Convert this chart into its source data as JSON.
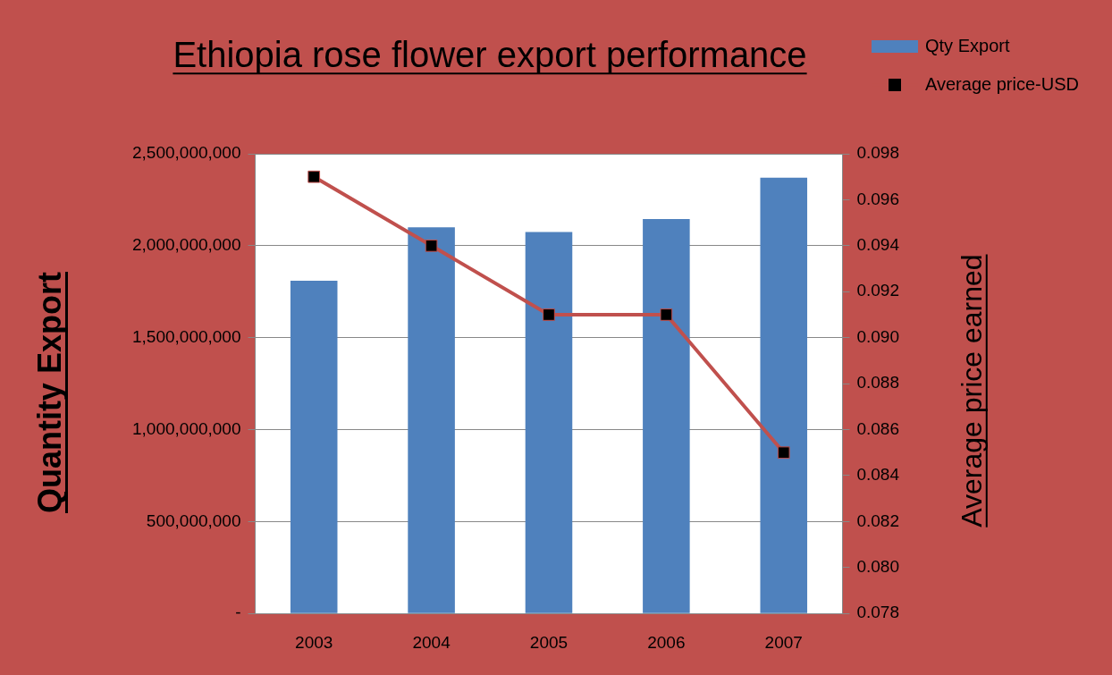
{
  "chart_data": {
    "type": "bar",
    "title": "Ethiopia rose flower export performance",
    "ylabel": "Quantity Export",
    "y2label": "Average price earned",
    "categories": [
      "2003",
      "2004",
      "2005",
      "2006",
      "2007"
    ],
    "series": [
      {
        "name": "Qty Export",
        "color": "#4f81bd",
        "values": [
          1810000000,
          2100000000,
          2075000000,
          2145000000,
          2370000000
        ]
      },
      {
        "name": "Average price-USD",
        "type": "line",
        "axis": "y2",
        "color": "#c0504d",
        "marker": "square",
        "values": [
          0.097,
          0.094,
          0.091,
          0.091,
          0.085
        ]
      }
    ],
    "ylim": [
      0,
      2500000000
    ],
    "yticks": [
      {
        "value": 0,
        "label": "-"
      },
      {
        "value": 500000000,
        "label": "500,000,000"
      },
      {
        "value": 1000000000,
        "label": "1,000,000,000"
      },
      {
        "value": 1500000000,
        "label": "1,500,000,000"
      },
      {
        "value": 2000000000,
        "label": "2,000,000,000"
      },
      {
        "value": 2500000000,
        "label": "2,500,000,000"
      }
    ],
    "y2lim": [
      0.078,
      0.098
    ],
    "y2ticks": [
      {
        "value": 0.078,
        "label": "0.078"
      },
      {
        "value": 0.08,
        "label": "0.080"
      },
      {
        "value": 0.082,
        "label": "0.082"
      },
      {
        "value": 0.084,
        "label": "0.084"
      },
      {
        "value": 0.086,
        "label": "0.086"
      },
      {
        "value": 0.088,
        "label": "0.088"
      },
      {
        "value": 0.09,
        "label": "0.090"
      },
      {
        "value": 0.092,
        "label": "0.092"
      },
      {
        "value": 0.094,
        "label": "0.094"
      },
      {
        "value": 0.096,
        "label": "0.096"
      },
      {
        "value": 0.098,
        "label": "0.098"
      }
    ],
    "grid": "y",
    "legend": "top right"
  }
}
